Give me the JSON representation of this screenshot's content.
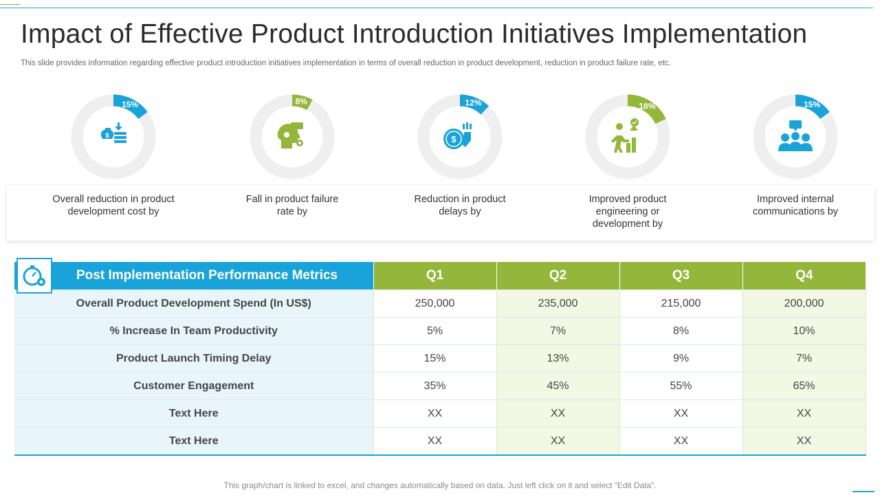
{
  "slide": {
    "title": "Impact of Effective Product Introduction Initiatives Implementation",
    "subtitle": "This slide provides information regarding effective product introduction initiatives implementation in terms of overall reduction in product development, reduction in product failure rate, etc.",
    "footnote": "This graph/chart is linked to excel, and changes automatically based on data. Just left click on it and select “Edit Data”."
  },
  "kpis": [
    {
      "percent": "15%",
      "value": 15,
      "color": "#1aa3d9",
      "icon": "money-reduction-icon",
      "label_line1": "Overall reduction in product",
      "label_line2": "development cost by",
      "label_line3": ""
    },
    {
      "percent": "8%",
      "value": 8,
      "color": "#94b63a",
      "icon": "head-gear-icon",
      "label_line1": "Fall in product failure",
      "label_line2": "rate by",
      "label_line3": ""
    },
    {
      "percent": "12%",
      "value": 12,
      "color": "#1aa3d9",
      "icon": "coin-decline-icon",
      "label_line1": "Reduction in product",
      "label_line2": "delays by",
      "label_line3": ""
    },
    {
      "percent": "18%",
      "value": 18,
      "color": "#94b63a",
      "icon": "person-growth-icon",
      "label_line1": "Improved product",
      "label_line2": "engineering or",
      "label_line3": "development by"
    },
    {
      "percent": "15%",
      "value": 15,
      "color": "#1aa3d9",
      "icon": "team-chat-icon",
      "label_line1": "Improved internal",
      "label_line2": "communications by",
      "label_line3": ""
    }
  ],
  "table": {
    "header": "Post Implementation Performance Metrics",
    "quarters": [
      "Q1",
      "Q2",
      "Q3",
      "Q4"
    ],
    "rows": [
      {
        "label": "Overall Product Development Spend (In US$)",
        "values": [
          "250,000",
          "235,000",
          "215,000",
          "200,000"
        ]
      },
      {
        "label": "% Increase In Team Productivity",
        "values": [
          "5%",
          "7%",
          "8%",
          "10%"
        ]
      },
      {
        "label": "Product Launch Timing Delay",
        "values": [
          "15%",
          "13%",
          "9%",
          "7%"
        ]
      },
      {
        "label": "Customer Engagement",
        "values": [
          "35%",
          "45%",
          "55%",
          "65%"
        ]
      },
      {
        "label": "Text Here",
        "values": [
          "XX",
          "XX",
          "XX",
          "XX"
        ]
      },
      {
        "label": "Text Here",
        "values": [
          "XX",
          "XX",
          "XX",
          "XX"
        ]
      }
    ]
  },
  "icons": {
    "header_icon": "gauge-gear-icon"
  }
}
